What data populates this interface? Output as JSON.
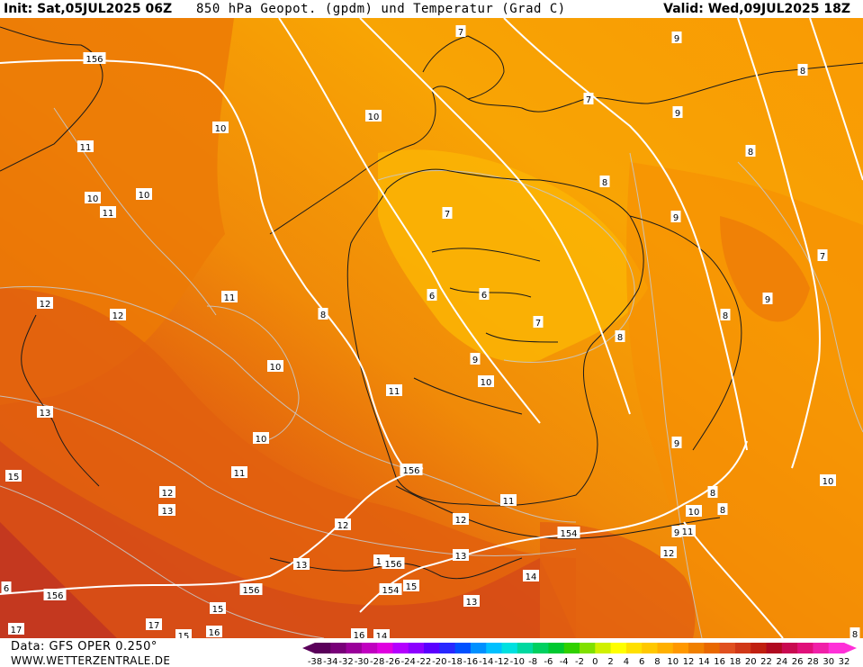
{
  "header": {
    "init_text": "Init: Sat,05JUL2025 06Z",
    "title_text": "850 hPa Geopot. (gpdm) und Temperatur (Grad C)",
    "valid_text": "Valid: Wed,09JUL2025 18Z"
  },
  "footer": {
    "data_text": "Data: GFS OPER 0.250°",
    "site_text": "WWW.WETTERZENTRALE.DE"
  },
  "legend": {
    "ticks": [
      "-38",
      "-34",
      "-32",
      "-30",
      "-28",
      "-26",
      "-24",
      "-22",
      "-20",
      "-18",
      "-16",
      "-14",
      "-12",
      "-10",
      "-8",
      "-6",
      "-4",
      "-2",
      "0",
      "2",
      "4",
      "6",
      "8",
      "10",
      "12",
      "14",
      "16",
      "18",
      "20",
      "22",
      "24",
      "26",
      "28",
      "30",
      "32"
    ],
    "colors": [
      "#5a005a",
      "#780078",
      "#9a009a",
      "#c000c0",
      "#e000e0",
      "#b400ff",
      "#8c00ff",
      "#5a00ff",
      "#2828ff",
      "#0050ff",
      "#0090ff",
      "#00c0ff",
      "#00e0e0",
      "#00d8a0",
      "#00d060",
      "#00c830",
      "#30d000",
      "#80e000",
      "#d0f000",
      "#ffff00",
      "#ffe000",
      "#ffc800",
      "#ffb000",
      "#ff9800",
      "#f08000",
      "#e86800",
      "#e05020",
      "#d03818",
      "#c02010",
      "#b00a20",
      "#c80a50",
      "#e0107a",
      "#f020a8",
      "#ff30d8"
    ]
  },
  "map": {
    "temperature_labels": [
      "7",
      "9",
      "8",
      "7",
      "10",
      "10",
      "9",
      "8",
      "11",
      "10",
      "10",
      "11",
      "8",
      "7",
      "9",
      "11",
      "8",
      "7",
      "12",
      "12",
      "8",
      "9",
      "7",
      "8",
      "6",
      "11",
      "10",
      "9",
      "9",
      "8",
      "6",
      "10",
      "13",
      "11",
      "10",
      "15",
      "12",
      "11",
      "13",
      "12",
      "8",
      "9",
      "11",
      "10",
      "12",
      "154",
      "13",
      "13",
      "12",
      "14",
      "14",
      "6",
      "15",
      "156",
      "154",
      "13",
      "17",
      "17",
      "15",
      "15",
      "16",
      "14",
      "16",
      "8",
      "10",
      "13",
      "156",
      "156",
      "156"
    ],
    "geopotential_labels": [
      "156",
      "156",
      "156",
      "156",
      "154",
      "154"
    ]
  }
}
